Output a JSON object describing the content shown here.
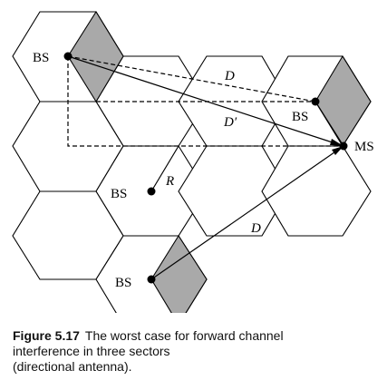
{
  "labels": {
    "bs_top_left": "BS",
    "bs_right": "BS",
    "bs_center": "BS",
    "bs_bottom": "BS",
    "ms": "MS",
    "d_top": "D",
    "d_prime": "D′",
    "r": "R",
    "d_bottom": "D"
  },
  "caption": {
    "figure_label": "Figure 5.17",
    "line1": "The worst case for forward channel",
    "line2": "interference in three sectors",
    "line3": "(directional antenna)."
  },
  "colors": {
    "sector_fill": "#a9a9a9",
    "line": "#000000"
  }
}
